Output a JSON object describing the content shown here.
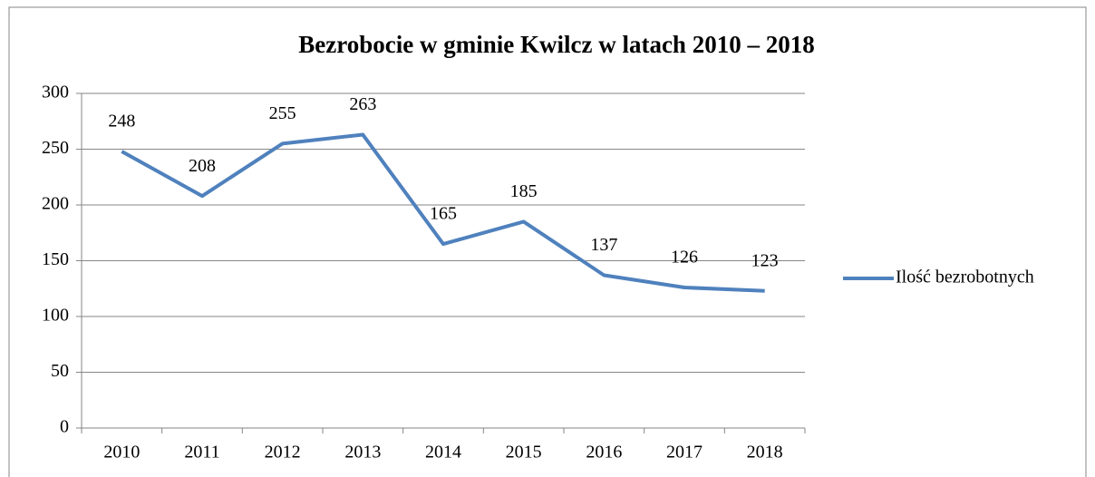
{
  "chart_data": {
    "type": "line",
    "title": "Bezrobocie w gminie Kwilcz w latach 2010 – 2018",
    "categories": [
      "2010",
      "2011",
      "2012",
      "2013",
      "2014",
      "2015",
      "2016",
      "2017",
      "2018"
    ],
    "series": [
      {
        "name": "Ilość bezrobotnych",
        "color": "#4f81bd",
        "values": [
          248,
          208,
          255,
          263,
          165,
          185,
          137,
          126,
          123
        ]
      }
    ],
    "ylim": [
      0,
      300
    ],
    "yticks": [
      0,
      50,
      100,
      150,
      200,
      250,
      300
    ],
    "grid": true,
    "legend": "right"
  }
}
